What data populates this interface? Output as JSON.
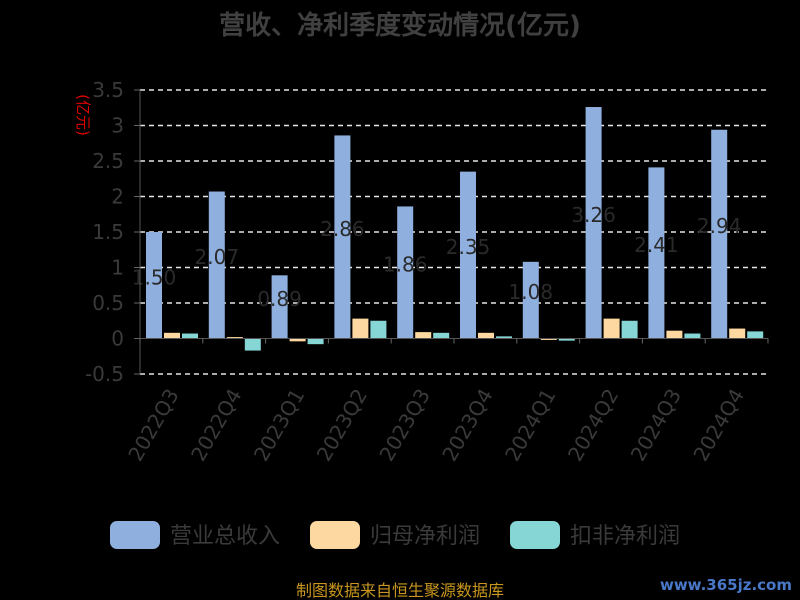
{
  "chart_data": {
    "type": "bar",
    "title": "营收、净利季度变动情况(亿元)",
    "ylabel": "(亿元)",
    "ylim": [
      -0.5,
      3.5
    ],
    "yticks": [
      -0.5,
      0,
      0.5,
      1,
      1.5,
      2,
      2.5,
      3,
      3.5
    ],
    "ytick_labels": [
      "-0.5",
      "0",
      "0.5",
      "1",
      "1.5",
      "2",
      "2.5",
      "3",
      "3.5"
    ],
    "grid": true,
    "legend_position": "bottom",
    "categories": [
      "2022Q3",
      "2022Q4",
      "2023Q1",
      "2023Q2",
      "2023Q3",
      "2023Q4",
      "2024Q1",
      "2024Q2",
      "2024Q3",
      "2024Q4"
    ],
    "series": [
      {
        "name": "营业总收入",
        "color": "#8fb0df",
        "values": [
          1.5,
          2.07,
          0.89,
          2.86,
          1.86,
          2.35,
          1.08,
          3.26,
          2.41,
          2.94
        ]
      },
      {
        "name": "归母净利润",
        "color": "#fdd8a0",
        "values": [
          0.08,
          0.02,
          -0.04,
          0.28,
          0.09,
          0.08,
          -0.02,
          0.28,
          0.11,
          0.14
        ]
      },
      {
        "name": "扣非净利润",
        "color": "#86d6d6",
        "values": [
          0.07,
          -0.17,
          -0.08,
          0.25,
          0.08,
          0.03,
          -0.03,
          0.25,
          0.07,
          0.1
        ]
      }
    ],
    "data_labels": [
      "1.50",
      "2.07",
      "0.89",
      "2.86",
      "1.86",
      "2.35",
      "1.08",
      "3.26",
      "2.41",
      "2.94"
    ]
  },
  "source_text": "制图数据来自恒生聚源数据库",
  "watermark_text": "www.365jz.com"
}
